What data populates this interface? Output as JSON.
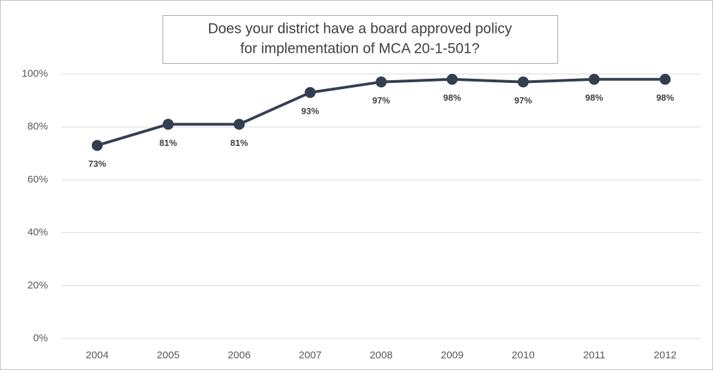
{
  "chart_data": {
    "type": "line",
    "title": [
      "Does your district have a board approved policy",
      "for implementation of MCA 20-1-501?"
    ],
    "categories": [
      "2004",
      "2005",
      "2006",
      "2007",
      "2008",
      "2009",
      "2010",
      "2011",
      "2012"
    ],
    "values": [
      73,
      81,
      81,
      93,
      97,
      98,
      97,
      98,
      98
    ],
    "value_labels": [
      "73%",
      "81%",
      "81%",
      "93%",
      "97%",
      "98%",
      "97%",
      "98%",
      "98%"
    ],
    "color": "#333f50",
    "ylim": [
      0,
      100
    ],
    "yticks": [
      {
        "value": 0,
        "label": "0%"
      },
      {
        "value": 20,
        "label": "20%"
      },
      {
        "value": 40,
        "label": "40%"
      },
      {
        "value": 60,
        "label": "60%"
      },
      {
        "value": 80,
        "label": "80%"
      },
      {
        "value": 100,
        "label": "100%"
      }
    ],
    "grid": true
  }
}
